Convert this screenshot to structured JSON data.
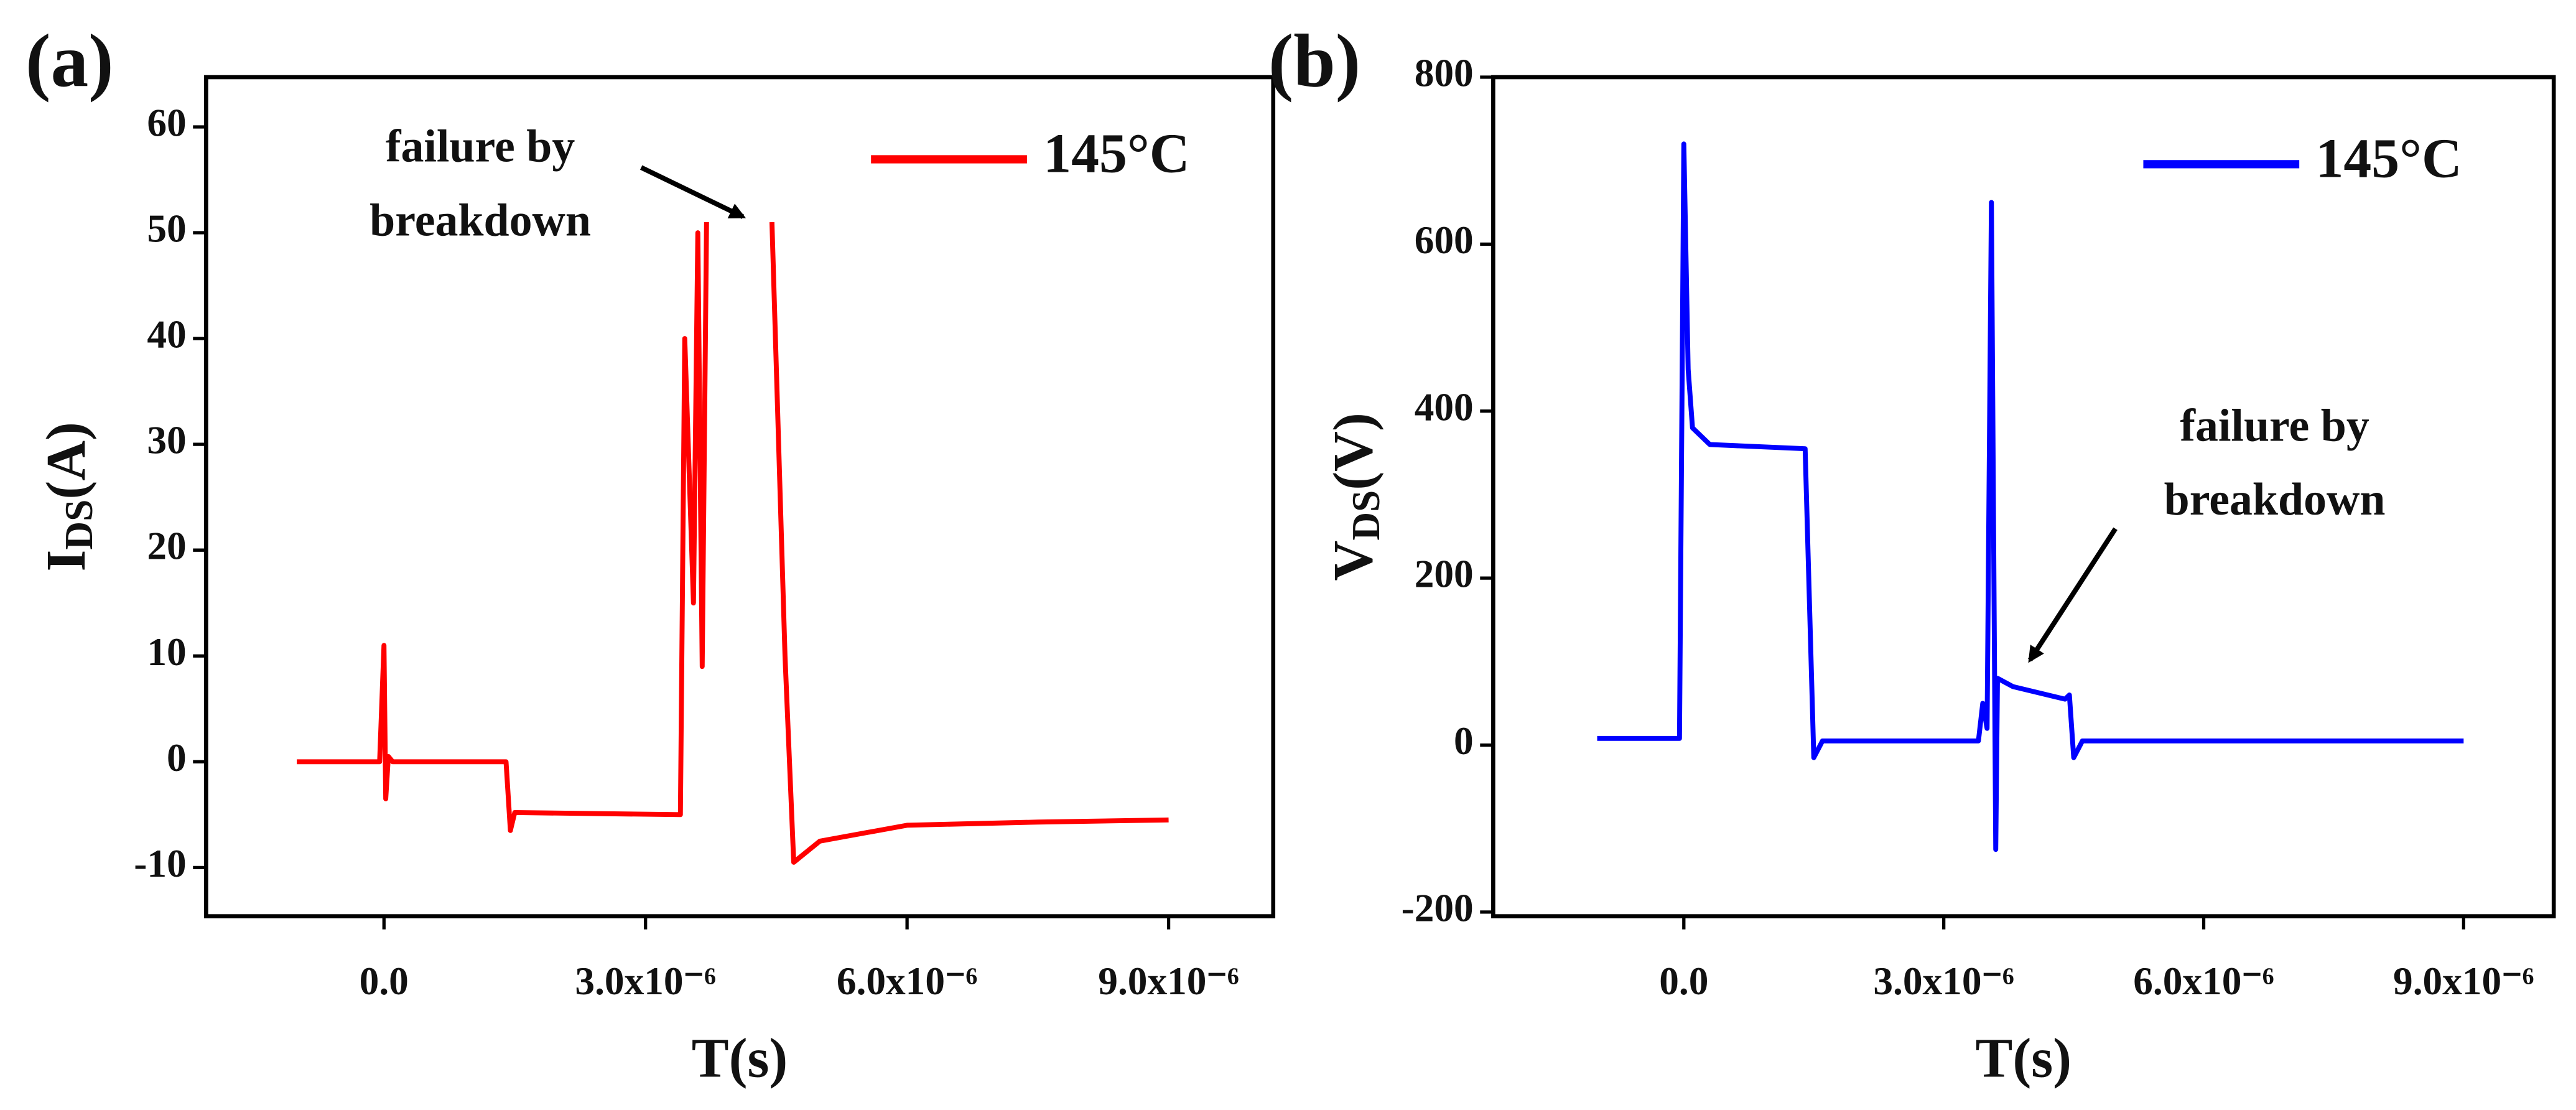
{
  "chart_data": [
    {
      "type": "line",
      "panel_label": "(a)",
      "xlabel": "T(s)",
      "ylabel": [
        "I",
        "DS",
        "(A)"
      ],
      "annotation": [
        "failure by",
        "breakdown"
      ],
      "xlim": [
        -2.04e-06,
        1.02e-05
      ],
      "ylim": [
        -14.6,
        64.7
      ],
      "xticks": [
        {
          "value": 0,
          "label": "0.0"
        },
        {
          "value": 3e-06,
          "label": "3.0x10⁻⁶"
        },
        {
          "value": 6e-06,
          "label": "6.0x10⁻⁶"
        },
        {
          "value": 9e-06,
          "label": "9.0x10⁻⁶"
        }
      ],
      "yticks": [
        -10,
        0,
        10,
        20,
        30,
        40,
        50,
        60
      ],
      "x": [
        -1e-06,
        -5e-08,
        0,
        2e-08,
        5e-08,
        1e-07,
        1.4e-06,
        1.45e-06,
        1.5e-06,
        3.4e-06,
        3.45e-06,
        3.55e-06,
        3.6e-06,
        3.65e-06,
        3.7e-06,
        4e-06,
        4.45e-06,
        4.6e-06,
        4.7e-06,
        5e-06,
        6e-06,
        7.5e-06,
        9e-06
      ],
      "series": [
        {
          "name": "145°C",
          "color": "#ff0000",
          "values": [
            0,
            0,
            11,
            -3.5,
            0.5,
            0,
            0,
            -6.5,
            -4.8,
            -5,
            40,
            15,
            50,
            9,
            51,
            null,
            51,
            10,
            -9.5,
            -7.5,
            -6,
            -5.7,
            -5.5
          ]
        }
      ]
    },
    {
      "type": "line",
      "panel_label": "(b)",
      "xlabel": "T(s)",
      "ylabel": [
        "V",
        "DS",
        "(V)"
      ],
      "annotation": [
        "failure by",
        "breakdown"
      ],
      "xlim": [
        -2.2e-06,
        1.004e-05
      ],
      "ylim": [
        -205,
        800
      ],
      "xticks": [
        {
          "value": 0,
          "label": "0.0"
        },
        {
          "value": 3e-06,
          "label": "3.0x10⁻⁶"
        },
        {
          "value": 6e-06,
          "label": "6.0x10⁻⁶"
        },
        {
          "value": 9e-06,
          "label": "9.0x10⁻⁶"
        }
      ],
      "yticks": [
        -200,
        0,
        200,
        400,
        600,
        800
      ],
      "x": [
        -1e-06,
        -5e-08,
        0,
        5e-08,
        1e-07,
        3e-07,
        1.4e-06,
        1.5e-06,
        1.6e-06,
        3.4e-06,
        3.45e-06,
        3.5e-06,
        3.55e-06,
        3.6e-06,
        3.62e-06,
        3.8e-06,
        4.4e-06,
        4.45e-06,
        4.5e-06,
        4.6e-06,
        9e-06
      ],
      "series": [
        {
          "name": "145°C",
          "color": "#0000ff",
          "values": [
            8,
            8,
            720,
            450,
            380,
            360,
            355,
            -15,
            5,
            5,
            50,
            20,
            650,
            -125,
            80,
            70,
            55,
            60,
            -15,
            5,
            5
          ]
        }
      ]
    }
  ]
}
